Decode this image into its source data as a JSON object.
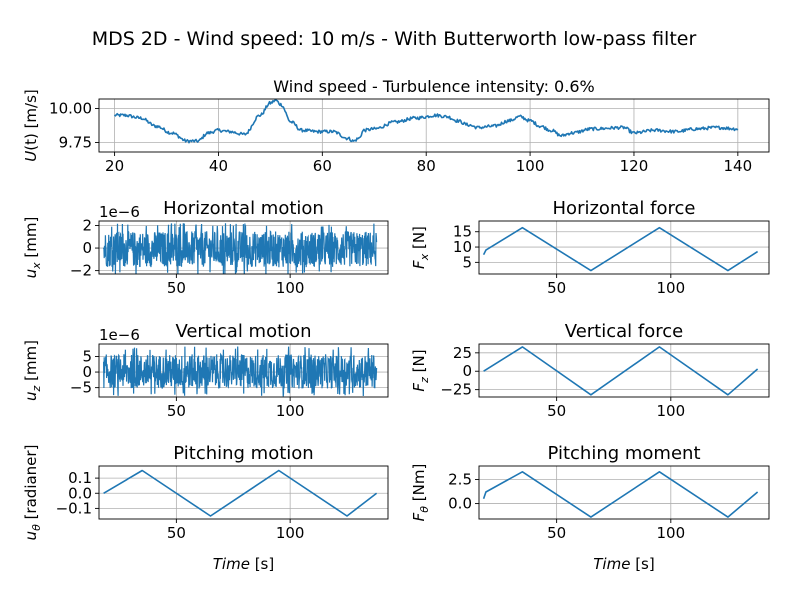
{
  "suptitle": "MDS 2D - Wind speed: 10 m/s - With Butterworth low-pass filter",
  "colors": {
    "line": "#1f77b4",
    "grid": "#b0b0b0",
    "axes": "#000000"
  },
  "chart_data": [
    {
      "id": "wind",
      "type": "line",
      "title": "Wind speed - Turbulence intensity: 0.6%",
      "xlabel": "",
      "ylabel": "U(t) [m/s]",
      "xlim": [
        17,
        146
      ],
      "ylim": [
        9.68,
        10.07
      ],
      "xticks": [
        20,
        40,
        60,
        80,
        100,
        120,
        140
      ],
      "xtick_labels": [
        "20",
        "40",
        "60",
        "80",
        "100",
        "120",
        "140"
      ],
      "yticks": [
        9.75,
        10.0
      ],
      "ytick_labels": [
        "9.75",
        "10.00"
      ],
      "series": [
        {
          "x": [
            20,
            22,
            25,
            28,
            31,
            34,
            36,
            38,
            40,
            42,
            45,
            48,
            50,
            51,
            52,
            54,
            56,
            59,
            62,
            65,
            66,
            67,
            68,
            70,
            74,
            78,
            82,
            84,
            86,
            88,
            90,
            93,
            96,
            98,
            100,
            102,
            104,
            106,
            108,
            112,
            118,
            120,
            124,
            128,
            132,
            136,
            140
          ],
          "y": [
            9.95,
            9.95,
            9.93,
            9.87,
            9.82,
            9.76,
            9.76,
            9.82,
            9.84,
            9.83,
            9.81,
            9.95,
            10.04,
            10.06,
            10.03,
            9.9,
            9.84,
            9.83,
            9.83,
            9.78,
            9.76,
            9.78,
            9.84,
            9.85,
            9.9,
            9.93,
            9.95,
            9.94,
            9.91,
            9.88,
            9.86,
            9.87,
            9.91,
            9.94,
            9.91,
            9.87,
            9.84,
            9.8,
            9.82,
            9.85,
            9.86,
            9.82,
            9.84,
            9.83,
            9.85,
            9.86,
            9.85
          ]
        }
      ]
    },
    {
      "id": "hmotion",
      "type": "line",
      "title": "Horizontal motion",
      "xlabel": "",
      "ylabel": "u_x [mm]",
      "offset_text": "1e−6",
      "xlim": [
        16,
        143
      ],
      "ylim": [
        -2.3,
        2.4
      ],
      "xticks": [
        50,
        100
      ],
      "xtick_labels": [
        "50",
        "100"
      ],
      "yticks": [
        -2,
        0,
        2
      ],
      "ytick_labels": [
        "−2",
        "0",
        "2"
      ],
      "noise": {
        "x_start": 18,
        "x_end": 138,
        "center": -0.1,
        "amplitude": 1.6,
        "peak": 2.3
      },
      "series": []
    },
    {
      "id": "hforce",
      "type": "line",
      "title": "Horizontal force",
      "xlabel": "",
      "ylabel": "F_x [N]",
      "xlim": [
        16,
        143
      ],
      "ylim": [
        1.2,
        18.5
      ],
      "xticks": [
        50,
        100
      ],
      "xtick_labels": [
        "50",
        "100"
      ],
      "yticks": [
        5,
        10,
        15
      ],
      "ytick_labels": [
        "5",
        "10",
        "15"
      ],
      "series": [
        {
          "x": [
            18,
            19,
            35,
            65,
            95,
            125,
            138
          ],
          "y": [
            7.5,
            9,
            16.3,
            2.3,
            16.3,
            2.3,
            8.5
          ]
        }
      ]
    },
    {
      "id": "vmotion",
      "type": "line",
      "title": "Vertical motion",
      "xlabel": "",
      "ylabel": "u_z [mm]",
      "offset_text": "1e−6",
      "xlim": [
        16,
        143
      ],
      "ylim": [
        -8,
        9
      ],
      "xticks": [
        50,
        100
      ],
      "xtick_labels": [
        "50",
        "100"
      ],
      "yticks": [
        -5,
        0,
        5
      ],
      "ytick_labels": [
        "−5",
        "0",
        "5"
      ],
      "noise": {
        "x_start": 18,
        "x_end": 138,
        "center": 0.2,
        "amplitude": 5.5,
        "peak": 8
      },
      "series": []
    },
    {
      "id": "vforce",
      "type": "line",
      "title": "Vertical force",
      "xlabel": "",
      "ylabel": "F_z [N]",
      "xlim": [
        16,
        143
      ],
      "ylim": [
        -35,
        37
      ],
      "xticks": [
        50,
        100
      ],
      "xtick_labels": [
        "50",
        "100"
      ],
      "yticks": [
        -25,
        0,
        25
      ],
      "ytick_labels": [
        "−25",
        "0",
        "25"
      ],
      "series": [
        {
          "x": [
            18,
            35,
            65,
            95,
            125,
            138
          ],
          "y": [
            0,
            33,
            -32,
            33,
            -32,
            3
          ]
        }
      ]
    },
    {
      "id": "pmotion",
      "type": "line",
      "title": "Pitching motion",
      "xlabel": "Time [s]",
      "ylabel": "u_θ [radianer]",
      "xlim": [
        16,
        143
      ],
      "ylim": [
        -0.17,
        0.18
      ],
      "xticks": [
        50,
        100
      ],
      "xtick_labels": [
        "50",
        "100"
      ],
      "yticks": [
        -0.1,
        0.0,
        0.1
      ],
      "ytick_labels": [
        "−0.1",
        "0.0",
        "0.1"
      ],
      "series": [
        {
          "x": [
            18,
            35,
            65,
            95,
            125,
            138
          ],
          "y": [
            0.0,
            0.15,
            -0.15,
            0.15,
            -0.15,
            0.0
          ]
        }
      ]
    },
    {
      "id": "pmoment",
      "type": "line",
      "title": "Pitching moment",
      "xlabel": "Time [s]",
      "ylabel": "F_θ [Nm]",
      "xlim": [
        16,
        143
      ],
      "ylim": [
        -1.6,
        3.9
      ],
      "xticks": [
        50,
        100
      ],
      "xtick_labels": [
        "50",
        "100"
      ],
      "yticks": [
        0.0,
        2.5
      ],
      "ytick_labels": [
        "0.0",
        "2.5"
      ],
      "series": [
        {
          "x": [
            18,
            19,
            35,
            65,
            95,
            125,
            138
          ],
          "y": [
            0.5,
            1.2,
            3.3,
            -1.4,
            3.3,
            -1.4,
            1.2
          ]
        }
      ]
    }
  ]
}
